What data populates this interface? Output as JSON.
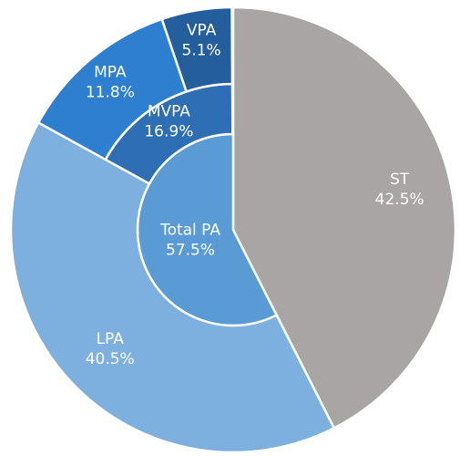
{
  "chart_data": {
    "type": "sunburst",
    "nodes": [
      {
        "name": "ST",
        "value": 42.5,
        "value_label": "42.5%",
        "color": "#a9a5a4"
      },
      {
        "name": "Total PA",
        "value": 57.5,
        "value_label": "57.5%",
        "color": "#5b9bd5",
        "children": [
          {
            "name": "LPA",
            "value": 40.5,
            "value_label": "40.5%",
            "color": "#7eb0df"
          },
          {
            "name": "MVPA",
            "value": 16.9,
            "value_label": "16.9%",
            "color": "#2e6eb4",
            "children": [
              {
                "name": "MPA",
                "value": 11.8,
                "value_label": "11.8%",
                "color": "#2f7fd0"
              },
              {
                "name": "VPA",
                "value": 5.1,
                "value_label": "5.1%",
                "color": "#245e9c"
              }
            ]
          }
        ]
      }
    ]
  }
}
